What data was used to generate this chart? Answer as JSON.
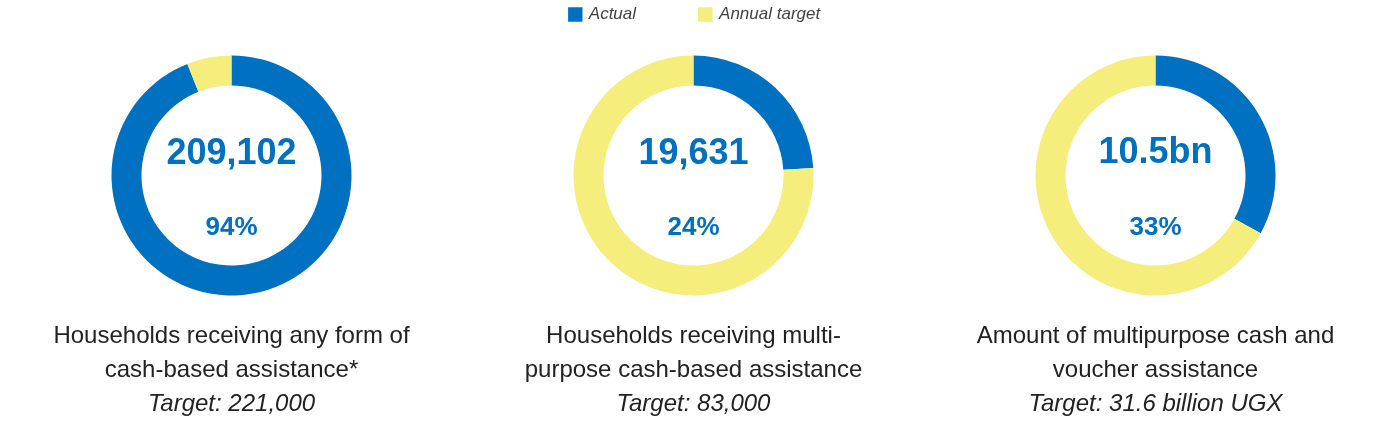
{
  "chart_data": [
    {
      "type": "donut",
      "title": "Households receiving any form of cash-based assistance*",
      "subtitle": "Target: 221,000",
      "categories": [
        null,
        null
      ],
      "values": [
        94,
        6
      ],
      "colors": [
        "#0070c0",
        "#f5ee7c"
      ],
      "annotations": [
        "209,102",
        "94%"
      ]
    },
    {
      "type": "donut",
      "title": "Households receiving multi-purpose cash-based assistance",
      "subtitle": "Target: 83,000",
      "categories": [
        "Actual",
        "Annual target"
      ],
      "values": [
        24,
        76
      ],
      "colors": [
        "#0070c0",
        "#f5ee7c"
      ],
      "annotations": [
        "19,631",
        "24%"
      ],
      "legend": "top"
    },
    {
      "type": "donut",
      "title": "Amount of multipurpose cash and voucher assistance",
      "subtitle": "Target: 31.6 billion UGX",
      "categories": [
        null,
        null
      ],
      "values": [
        33,
        67
      ],
      "colors": [
        "#0070c0",
        "#f5ee7c"
      ],
      "annotations": [
        "10.5bn",
        "33%"
      ]
    }
  ]
}
